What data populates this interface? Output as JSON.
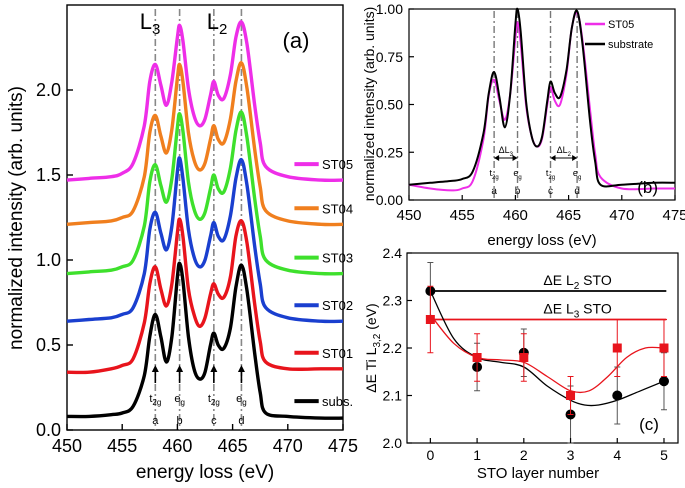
{
  "chart_data": [
    {
      "panel_label": "(a)",
      "type": "line",
      "xlabel": "energy loss (eV)",
      "ylabel": "normalized intensity (arb. units)",
      "xlim": [
        450,
        475
      ],
      "ylim": [
        0.0,
        2.5
      ],
      "xticks": [
        "450",
        "455",
        "460",
        "465",
        "470",
        "475"
      ],
      "yticks": [
        "0.0",
        "0.5",
        "1.0",
        "1.5",
        "2.0"
      ],
      "edge_labels": [
        "L3",
        "L2"
      ],
      "peak_positions": [
        458.0,
        460.2,
        463.3,
        465.8
      ],
      "peak_markers": [
        {
          "sub": "t2g",
          "letter": "a",
          "x": 458.0
        },
        {
          "sub": "eg",
          "letter": "b",
          "x": 460.2
        },
        {
          "sub": "t2g",
          "letter": "c",
          "x": 463.3
        },
        {
          "sub": "eg",
          "letter": "d",
          "x": 465.8
        }
      ],
      "x": [
        450,
        452,
        454,
        455,
        456,
        457,
        457.5,
        458,
        458.5,
        459,
        459.5,
        460,
        460.2,
        460.5,
        461,
        461.5,
        462,
        462.5,
        463,
        463.3,
        463.7,
        464.2,
        464.8,
        465.3,
        465.8,
        466.3,
        467,
        467.5,
        468,
        470,
        473,
        475
      ],
      "series": [
        {
          "name": "subs.",
          "color": "#000000",
          "offset": 0.0,
          "values": [
            0.08,
            0.08,
            0.09,
            0.1,
            0.14,
            0.32,
            0.55,
            0.68,
            0.55,
            0.4,
            0.55,
            0.9,
            0.98,
            0.88,
            0.55,
            0.36,
            0.3,
            0.34,
            0.5,
            0.57,
            0.5,
            0.48,
            0.6,
            0.84,
            0.97,
            0.82,
            0.45,
            0.22,
            0.1,
            0.08,
            0.07,
            0.07
          ]
        },
        {
          "name": "ST01",
          "color": "#e8141c",
          "offset": 0.28,
          "values": [
            0.06,
            0.06,
            0.08,
            0.1,
            0.14,
            0.35,
            0.58,
            0.68,
            0.55,
            0.45,
            0.58,
            0.88,
            0.96,
            0.86,
            0.55,
            0.4,
            0.33,
            0.38,
            0.52,
            0.58,
            0.52,
            0.5,
            0.62,
            0.86,
            0.95,
            0.82,
            0.46,
            0.24,
            0.12,
            0.08,
            0.08,
            0.08
          ]
        },
        {
          "name": "ST02",
          "color": "#1a3fcf",
          "offset": 0.62,
          "values": [
            0.02,
            0.03,
            0.04,
            0.06,
            0.1,
            0.3,
            0.56,
            0.66,
            0.54,
            0.44,
            0.58,
            0.9,
            0.98,
            0.86,
            0.56,
            0.4,
            0.34,
            0.38,
            0.52,
            0.6,
            0.52,
            0.5,
            0.64,
            0.86,
            0.97,
            0.82,
            0.46,
            0.24,
            0.1,
            0.04,
            0.02,
            0.02
          ]
        },
        {
          "name": "ST03",
          "color": "#3ee02c",
          "offset": 0.9,
          "values": [
            0.02,
            0.03,
            0.04,
            0.06,
            0.1,
            0.3,
            0.56,
            0.66,
            0.54,
            0.44,
            0.58,
            0.88,
            0.96,
            0.86,
            0.56,
            0.4,
            0.34,
            0.38,
            0.52,
            0.6,
            0.52,
            0.5,
            0.64,
            0.86,
            0.97,
            0.82,
            0.46,
            0.24,
            0.1,
            0.04,
            0.02,
            0.02
          ]
        },
        {
          "name": "ST04",
          "color": "#f07f1e",
          "offset": 1.19,
          "values": [
            0.02,
            0.03,
            0.04,
            0.06,
            0.1,
            0.3,
            0.56,
            0.66,
            0.54,
            0.44,
            0.58,
            0.88,
            0.96,
            0.86,
            0.56,
            0.4,
            0.34,
            0.38,
            0.52,
            0.6,
            0.52,
            0.5,
            0.64,
            0.86,
            0.97,
            0.82,
            0.46,
            0.24,
            0.1,
            0.04,
            0.02,
            0.02
          ]
        },
        {
          "name": "ST05",
          "color": "#ee2ee8",
          "offset": 1.45,
          "values": [
            0.02,
            0.03,
            0.04,
            0.06,
            0.12,
            0.34,
            0.6,
            0.7,
            0.58,
            0.46,
            0.6,
            0.86,
            0.93,
            0.84,
            0.56,
            0.4,
            0.34,
            0.38,
            0.52,
            0.6,
            0.52,
            0.5,
            0.64,
            0.86,
            0.95,
            0.82,
            0.46,
            0.24,
            0.1,
            0.04,
            0.02,
            0.02
          ]
        }
      ]
    },
    {
      "panel_label": "(b)",
      "type": "line",
      "xlabel": "energy loss (eV)",
      "ylabel": "normalized intensity (arb. units)",
      "xlim": [
        450,
        475
      ],
      "ylim": [
        0.0,
        1.0
      ],
      "xticks": [
        "450",
        "455",
        "460",
        "465",
        "470",
        "475"
      ],
      "yticks": [
        "0.00",
        "0.25",
        "0.50",
        "0.75",
        "1.00"
      ],
      "peak_positions": [
        458.0,
        460.2,
        463.3,
        465.8
      ],
      "peak_markers": [
        {
          "sub": "t2g",
          "letter": "a",
          "x": 458.0
        },
        {
          "sub": "eg",
          "letter": "b",
          "x": 460.2
        },
        {
          "sub": "t2g",
          "letter": "c",
          "x": 463.3
        },
        {
          "sub": "eg",
          "letter": "d",
          "x": 465.8
        }
      ],
      "delta_labels": [
        "ΔL3",
        "ΔL2"
      ],
      "x": [
        450,
        452,
        454,
        455,
        456,
        457,
        457.5,
        458,
        458.5,
        459,
        459.5,
        460,
        460.2,
        460.5,
        461,
        461.5,
        462,
        462.5,
        463,
        463.3,
        463.7,
        464.2,
        464.8,
        465.3,
        465.8,
        466.3,
        467,
        467.5,
        468,
        470,
        473,
        475
      ],
      "series": [
        {
          "name": "ST05",
          "color": "#ee2ee8",
          "values": [
            0.08,
            0.06,
            0.05,
            0.06,
            0.1,
            0.32,
            0.55,
            0.63,
            0.52,
            0.42,
            0.55,
            0.85,
            0.93,
            0.82,
            0.5,
            0.34,
            0.28,
            0.32,
            0.5,
            0.59,
            0.52,
            0.5,
            0.66,
            0.9,
            0.98,
            0.84,
            0.48,
            0.24,
            0.12,
            0.06,
            0.06,
            0.06
          ]
        },
        {
          "name": "substrate",
          "color": "#000000",
          "values": [
            0.08,
            0.09,
            0.1,
            0.11,
            0.15,
            0.35,
            0.56,
            0.67,
            0.54,
            0.38,
            0.55,
            0.92,
            1.0,
            0.88,
            0.52,
            0.34,
            0.28,
            0.33,
            0.52,
            0.62,
            0.56,
            0.54,
            0.68,
            0.9,
            0.99,
            0.82,
            0.42,
            0.2,
            0.08,
            0.08,
            0.09,
            0.09
          ]
        }
      ]
    },
    {
      "panel_label": "(c)",
      "type": "scatter",
      "xlabel": "STO layer number",
      "ylabel": "ΔE Ti L3,2 (eV)",
      "xlim": [
        -0.5,
        5.3
      ],
      "ylim": [
        2.0,
        2.4
      ],
      "xticks": [
        "0",
        "1",
        "2",
        "3",
        "4",
        "5"
      ],
      "yticks": [
        "2.0",
        "2.1",
        "2.2",
        "2.3",
        "2.4"
      ],
      "series": [
        {
          "name": "ΔE L2 STO",
          "color": "#000000",
          "marker": "circle",
          "reference": 2.32,
          "x": [
            0,
            1,
            2,
            3,
            4,
            5
          ],
          "values": [
            2.32,
            2.16,
            2.19,
            2.06,
            2.1,
            2.13
          ],
          "errors": [
            0.06,
            0.05,
            0.05,
            0.06,
            0.06,
            0.06
          ]
        },
        {
          "name": "ΔE L3 STO",
          "color": "#e8141c",
          "marker": "square",
          "reference": 2.26,
          "x": [
            0,
            1,
            2,
            3,
            4,
            5
          ],
          "values": [
            2.26,
            2.18,
            2.18,
            2.1,
            2.2,
            2.2
          ],
          "errors": [
            0.07,
            0.05,
            0.05,
            0.04,
            0.06,
            0.06
          ]
        }
      ],
      "fit_curves": [
        {
          "color": "#000000",
          "x": [
            0,
            0.5,
            1,
            1.5,
            2,
            2.5,
            3,
            3.3,
            3.6,
            4,
            4.5,
            5
          ],
          "values": [
            2.32,
            2.22,
            2.18,
            2.17,
            2.16,
            2.12,
            2.09,
            2.08,
            2.08,
            2.09,
            2.11,
            2.13
          ]
        },
        {
          "color": "#e8141c",
          "x": [
            0,
            0.5,
            1,
            1.5,
            2,
            2.5,
            3,
            3.4,
            3.8,
            4.2,
            4.6,
            5
          ],
          "values": [
            2.27,
            2.21,
            2.18,
            2.175,
            2.17,
            2.14,
            2.11,
            2.11,
            2.14,
            2.18,
            2.2,
            2.2
          ]
        }
      ]
    }
  ]
}
